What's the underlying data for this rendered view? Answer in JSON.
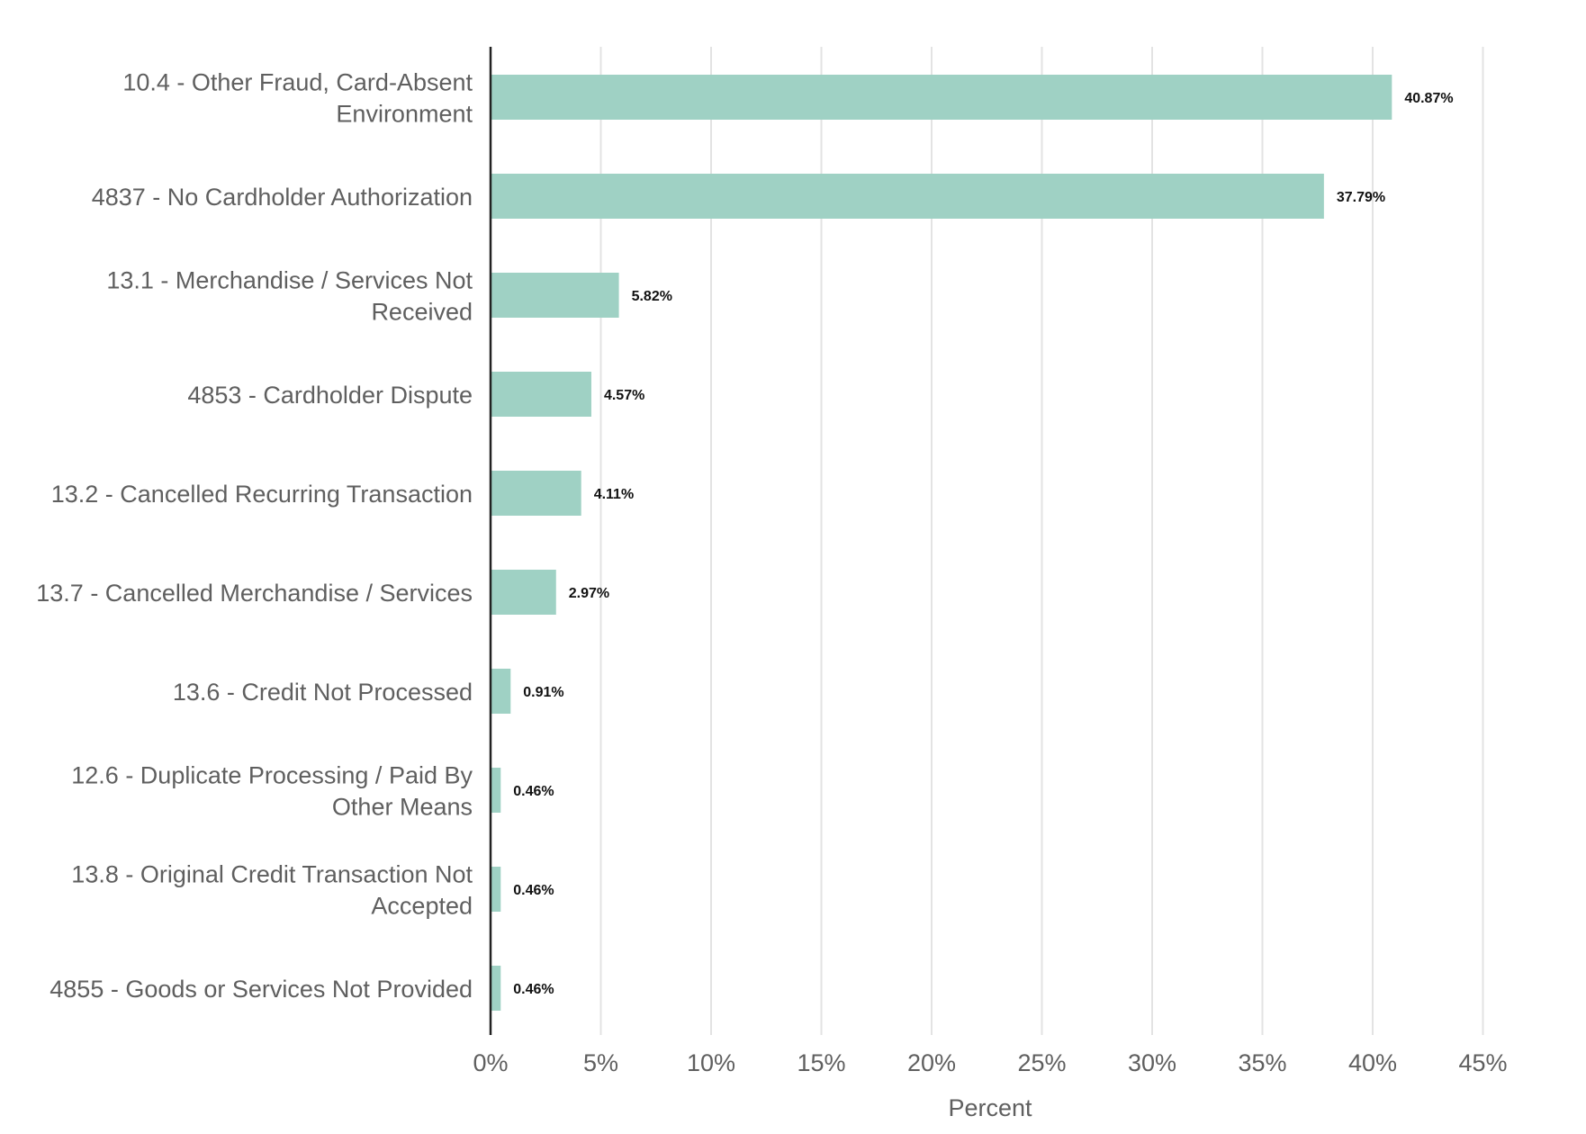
{
  "chart_data": {
    "type": "bar",
    "orientation": "horizontal",
    "title": "",
    "xlabel": "Percent",
    "ylabel": "",
    "xlim": [
      0,
      45
    ],
    "x_ticks": [
      0,
      5,
      10,
      15,
      20,
      25,
      30,
      35,
      40,
      45
    ],
    "x_tick_labels": [
      "0%",
      "5%",
      "10%",
      "15%",
      "20%",
      "25%",
      "30%",
      "35%",
      "40%",
      "45%"
    ],
    "grid": true,
    "categories": [
      [
        "10.4 - Other Fraud, Card-Absent",
        "Environment"
      ],
      [
        "4837 - No Cardholder Authorization"
      ],
      [
        "13.1 - Merchandise / Services Not",
        "Received"
      ],
      [
        "4853 - Cardholder Dispute"
      ],
      [
        "13.2 - Cancelled Recurring Transaction"
      ],
      [
        "13.7 - Cancelled Merchandise / Services"
      ],
      [
        "13.6 - Credit Not Processed"
      ],
      [
        "12.6 - Duplicate Processing / Paid By",
        "Other Means"
      ],
      [
        "13.8 - Original Credit Transaction Not",
        "Accepted"
      ],
      [
        "4855 - Goods or Services Not Provided"
      ]
    ],
    "values": [
      40.87,
      37.79,
      5.82,
      4.57,
      4.11,
      2.97,
      0.91,
      0.46,
      0.46,
      0.46
    ],
    "data_labels": [
      "40.87%",
      "37.79%",
      "5.82%",
      "4.57%",
      "4.11%",
      "2.97%",
      "0.91%",
      "0.46%",
      "0.46%",
      "0.46%"
    ],
    "colors": {
      "bar": "#9fd1c4",
      "grid": "#e3e3e3",
      "axis": "#222222",
      "text": "#5f5f5f",
      "data_label": "#111111"
    }
  }
}
